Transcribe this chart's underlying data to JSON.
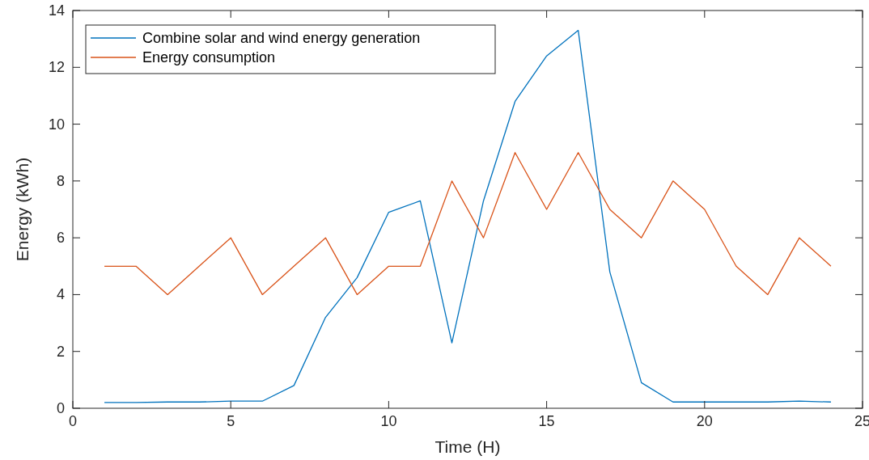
{
  "chart_data": {
    "type": "line",
    "xlabel": "Time (H)",
    "ylabel": "Energy (kWh)",
    "x": [
      1,
      2,
      3,
      4,
      5,
      6,
      7,
      8,
      9,
      10,
      11,
      12,
      13,
      14,
      15,
      16,
      17,
      18,
      19,
      20,
      21,
      22,
      23,
      24
    ],
    "series": [
      {
        "name": "Combine solar and wind energy generation",
        "color": "#0072bd",
        "values": [
          0.2,
          0.2,
          0.22,
          0.22,
          0.25,
          0.25,
          0.8,
          3.2,
          4.6,
          6.9,
          7.3,
          2.3,
          7.3,
          10.8,
          12.4,
          13.3,
          4.8,
          0.9,
          0.22,
          0.22,
          0.22,
          0.22,
          0.25,
          0.22
        ]
      },
      {
        "name": "Energy consumption",
        "color": "#d95319",
        "values": [
          5,
          5,
          4,
          5,
          6,
          4,
          5,
          6,
          4,
          5,
          5,
          8,
          6,
          9,
          7,
          9,
          7,
          6,
          8,
          7,
          5,
          4,
          6,
          5
        ]
      }
    ],
    "xlim": [
      0,
      25
    ],
    "xticks": [
      0,
      5,
      10,
      15,
      20,
      25
    ],
    "ylim": [
      0,
      14
    ],
    "yticks": [
      0,
      2,
      4,
      6,
      8,
      10,
      12,
      14
    ],
    "grid": false,
    "legend": "top left",
    "marker": "none",
    "line_style": "solid"
  }
}
